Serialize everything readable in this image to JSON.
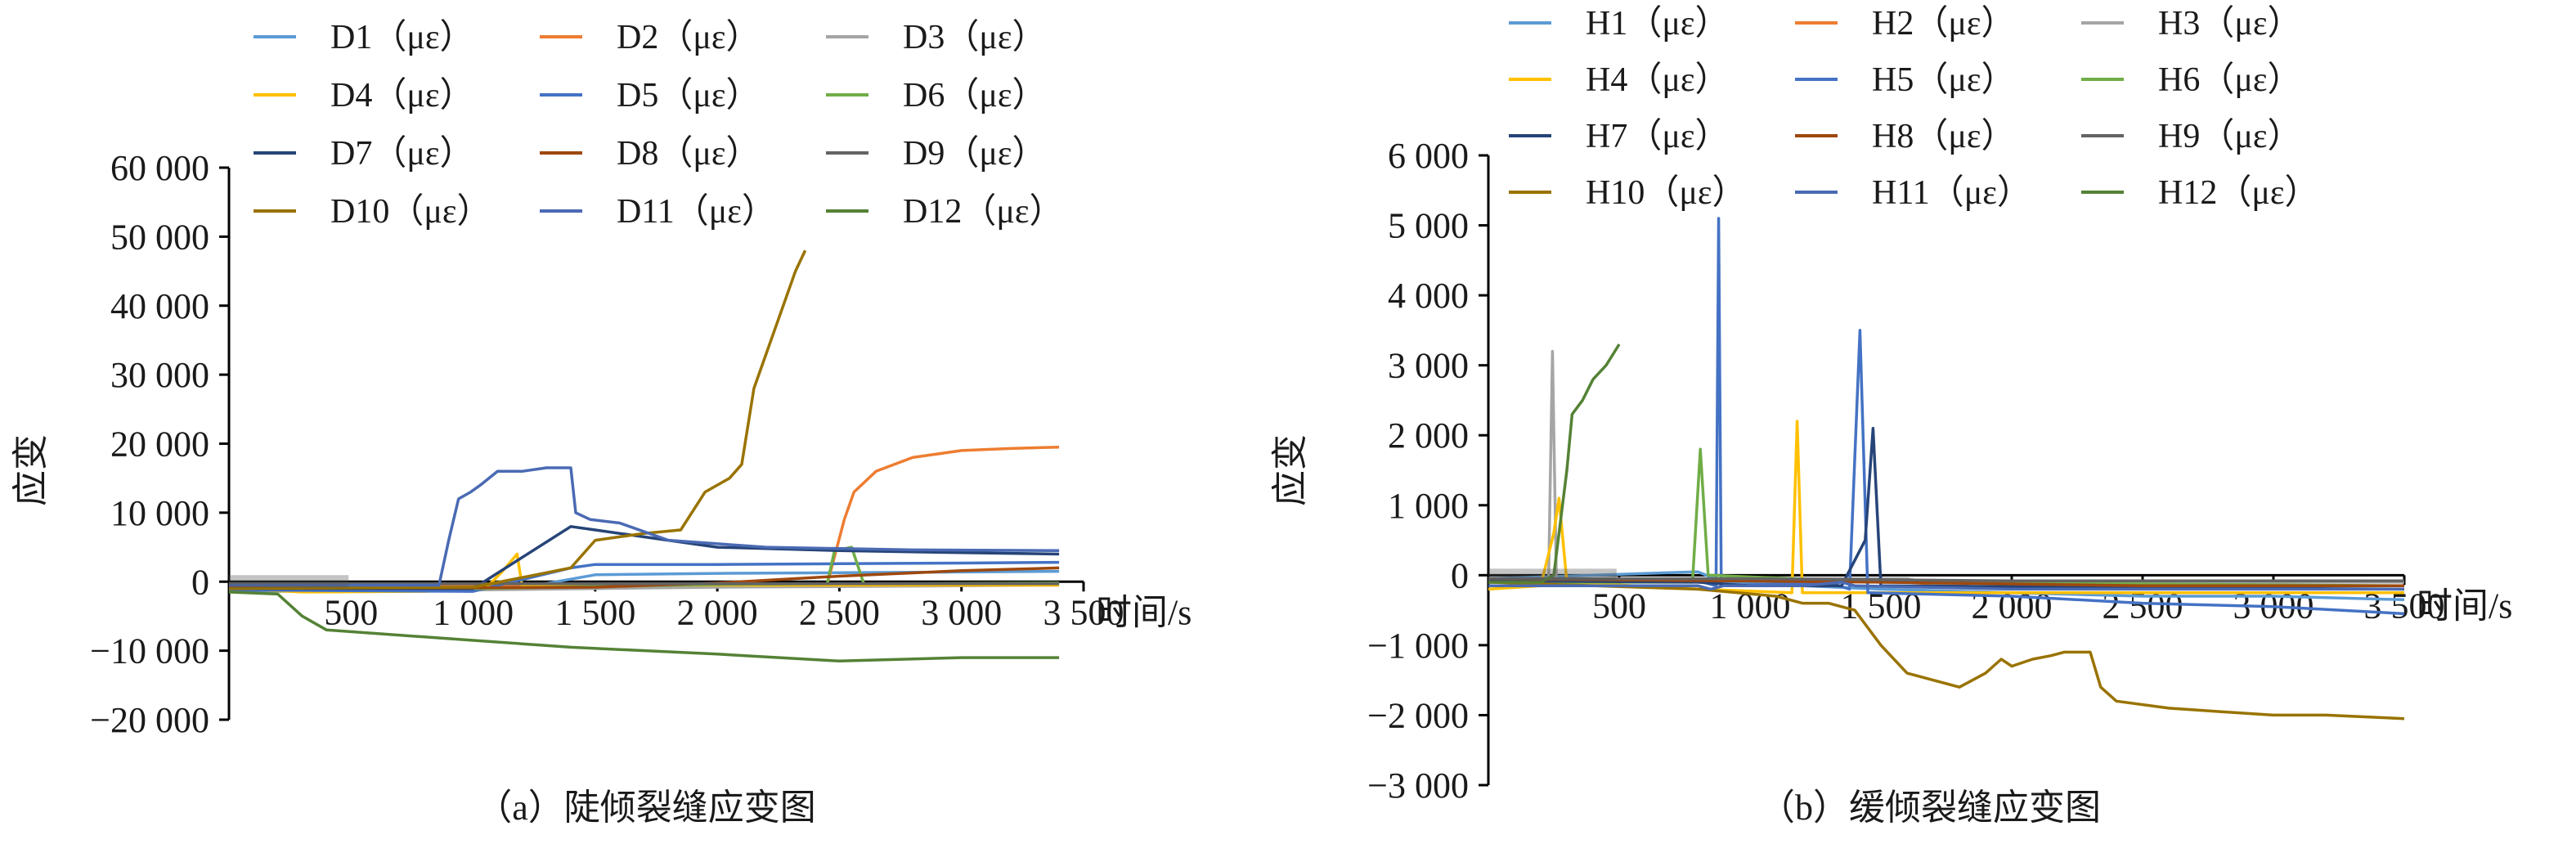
{
  "chart_data": [
    {
      "type": "line",
      "title": "",
      "caption": "（a）陡倾裂缝应变图",
      "xlabel": "时间/s",
      "ylabel": "应变",
      "xlim": [
        0,
        3500
      ],
      "ylim": [
        -20000,
        60000
      ],
      "x_ticks": [
        500,
        1000,
        1500,
        2000,
        2500,
        3000,
        3500
      ],
      "x_tick_labels": [
        "500",
        "1 000",
        "1 500",
        "2 000",
        "2 500",
        "3 000",
        "3 500"
      ],
      "y_ticks": [
        -20000,
        -10000,
        0,
        10000,
        20000,
        30000,
        40000,
        50000,
        60000
      ],
      "y_tick_labels": [
        "−20 000",
        "−10 000",
        "0",
        "10 000",
        "20 000",
        "30 000",
        "40 000",
        "50 000",
        "60 000"
      ],
      "grid": false,
      "legend_position": "top",
      "series": [
        {
          "name": "D1（με）",
          "color": "#5b9bd5",
          "points": [
            [
              0,
              -1500
            ],
            [
              600,
              -1200
            ],
            [
              1200,
              -900
            ],
            [
              1500,
              1000
            ],
            [
              2000,
              1200
            ],
            [
              2500,
              1300
            ],
            [
              3000,
              1400
            ],
            [
              3400,
              1500
            ]
          ]
        },
        {
          "name": "D2（με）",
          "color": "#ed7d31",
          "points": [
            [
              0,
              -500
            ],
            [
              1000,
              -600
            ],
            [
              2000,
              -600
            ],
            [
              2450,
              -400
            ],
            [
              2520,
              9000
            ],
            [
              2560,
              13000
            ],
            [
              2650,
              16000
            ],
            [
              2800,
              18000
            ],
            [
              3000,
              19000
            ],
            [
              3200,
              19300
            ],
            [
              3400,
              19500
            ]
          ]
        },
        {
          "name": "D3（με）",
          "color": "#a5a5a5",
          "points": [
            [
              0,
              -1000
            ],
            [
              1000,
              -1200
            ],
            [
              2000,
              -800
            ],
            [
              3000,
              -600
            ],
            [
              3400,
              -500
            ]
          ]
        },
        {
          "name": "D4（με）",
          "color": "#ffc000",
          "points": [
            [
              0,
              -1000
            ],
            [
              300,
              -1500
            ],
            [
              800,
              -1400
            ],
            [
              1050,
              -1000
            ],
            [
              1120,
              1500
            ],
            [
              1180,
              4000
            ],
            [
              1200,
              -500
            ],
            [
              3400,
              -500
            ]
          ]
        },
        {
          "name": "D5（με）",
          "color": "#4472c4",
          "points": [
            [
              0,
              -1200
            ],
            [
              1000,
              -1400
            ],
            [
              1400,
              2000
            ],
            [
              1500,
              2500
            ],
            [
              2000,
              2500
            ],
            [
              2500,
              2600
            ],
            [
              3000,
              2700
            ],
            [
              3400,
              2800
            ]
          ]
        },
        {
          "name": "D6（με）",
          "color": "#70ad47",
          "points": [
            [
              0,
              -900
            ],
            [
              1000,
              -1000
            ],
            [
              2000,
              -400
            ],
            [
              2450,
              -300
            ],
            [
              2480,
              4500
            ],
            [
              2550,
              5000
            ],
            [
              2600,
              -300
            ],
            [
              3400,
              -200
            ]
          ]
        },
        {
          "name": "D7（με）",
          "color": "#264478",
          "points": [
            [
              0,
              -1000
            ],
            [
              1000,
              -1000
            ],
            [
              1400,
              8000
            ],
            [
              1500,
              7500
            ],
            [
              2000,
              5000
            ],
            [
              2500,
              4500
            ],
            [
              3000,
              4200
            ],
            [
              3400,
              4000
            ]
          ]
        },
        {
          "name": "D8（με）",
          "color": "#9e480e",
          "points": [
            [
              0,
              -800
            ],
            [
              1000,
              -900
            ],
            [
              1500,
              -800
            ],
            [
              2000,
              -200
            ],
            [
              2500,
              800
            ],
            [
              3000,
              1600
            ],
            [
              3400,
              2000
            ]
          ]
        },
        {
          "name": "D9（με）",
          "color": "#636363",
          "points": [
            [
              0,
              -300
            ],
            [
              1000,
              -300
            ],
            [
              2000,
              -300
            ],
            [
              3000,
              -300
            ],
            [
              3400,
              -300
            ]
          ]
        },
        {
          "name": "D10（με）",
          "color": "#997300",
          "points": [
            [
              0,
              -1000
            ],
            [
              1000,
              -800
            ],
            [
              1400,
              2000
            ],
            [
              1500,
              6000
            ],
            [
              1700,
              7000
            ],
            [
              1850,
              7500
            ],
            [
              1950,
              13000
            ],
            [
              2050,
              15000
            ],
            [
              2100,
              17000
            ],
            [
              2150,
              28000
            ],
            [
              2250,
              38000
            ],
            [
              2320,
              45000
            ],
            [
              2360,
              48000
            ]
          ]
        },
        {
          "name": "D11（με）",
          "color": "#4a6ab3",
          "points": [
            [
              0,
              -500
            ],
            [
              860,
              -500
            ],
            [
              900,
              6000
            ],
            [
              940,
              12000
            ],
            [
              990,
              13000
            ],
            [
              1030,
              14000
            ],
            [
              1100,
              16000
            ],
            [
              1200,
              16000
            ],
            [
              1300,
              16500
            ],
            [
              1400,
              16500
            ],
            [
              1420,
              10000
            ],
            [
              1480,
              9000
            ],
            [
              1600,
              8500
            ],
            [
              1800,
              6000
            ],
            [
              2200,
              5000
            ],
            [
              2800,
              4600
            ],
            [
              3400,
              4500
            ]
          ]
        },
        {
          "name": "D12（με）",
          "color": "#548235",
          "points": [
            [
              0,
              -1500
            ],
            [
              200,
              -1800
            ],
            [
              300,
              -5000
            ],
            [
              400,
              -7000
            ],
            [
              800,
              -8000
            ],
            [
              1000,
              -8500
            ],
            [
              1400,
              -9500
            ],
            [
              2000,
              -10500
            ],
            [
              2500,
              -11500
            ],
            [
              3000,
              -11000
            ],
            [
              3400,
              -11000
            ]
          ]
        }
      ]
    },
    {
      "type": "line",
      "title": "",
      "caption": "（b）缓倾裂缝应变图",
      "xlabel": "时间/s",
      "ylabel": "应变",
      "xlim": [
        0,
        3500
      ],
      "ylim": [
        -3000,
        6000
      ],
      "x_ticks": [
        500,
        1000,
        1500,
        2000,
        2500,
        3000,
        3500
      ],
      "x_tick_labels": [
        "500",
        "1 000",
        "1 500",
        "2 000",
        "2 500",
        "3 000",
        "3 500"
      ],
      "y_ticks": [
        -3000,
        -2000,
        -1000,
        0,
        1000,
        2000,
        3000,
        4000,
        5000,
        6000
      ],
      "y_tick_labels": [
        "−3 000",
        "−2 000",
        "−1 000",
        "0",
        "1 000",
        "2 000",
        "3 000",
        "4 000",
        "5 000",
        "6 000"
      ],
      "grid": false,
      "legend_position": "top",
      "series": [
        {
          "name": "H1（με）",
          "color": "#5b9bd5",
          "points": [
            [
              0,
              -50
            ],
            [
              800,
              50
            ],
            [
              900,
              -100
            ],
            [
              1500,
              -200
            ],
            [
              2000,
              -250
            ],
            [
              2500,
              -300
            ],
            [
              3000,
              -300
            ],
            [
              3500,
              -350
            ]
          ]
        },
        {
          "name": "H2（με）",
          "color": "#ed7d31",
          "points": [
            [
              0,
              -80
            ],
            [
              1000,
              -80
            ],
            [
              1600,
              -100
            ],
            [
              1800,
              -150
            ],
            [
              2000,
              -200
            ],
            [
              2500,
              -150
            ],
            [
              3000,
              -150
            ],
            [
              3500,
              -150
            ]
          ]
        },
        {
          "name": "H3（με）",
          "color": "#a5a5a5",
          "points": [
            [
              0,
              -100
            ],
            [
              230,
              -100
            ],
            [
              245,
              3200
            ],
            [
              260,
              -100
            ],
            [
              1000,
              -50
            ],
            [
              1500,
              -50
            ],
            [
              1600,
              -50
            ],
            [
              1700,
              -120
            ],
            [
              2500,
              -100
            ],
            [
              3500,
              -100
            ]
          ]
        },
        {
          "name": "H4（με）",
          "color": "#ffc000",
          "points": [
            [
              0,
              -200
            ],
            [
              200,
              -150
            ],
            [
              250,
              600
            ],
            [
              270,
              1100
            ],
            [
              300,
              -100
            ],
            [
              800,
              -200
            ],
            [
              1160,
              -250
            ],
            [
              1180,
              2200
            ],
            [
              1200,
              -250
            ],
            [
              3500,
              -250
            ]
          ]
        },
        {
          "name": "H5（με）",
          "color": "#4472c4",
          "points": [
            [
              0,
              -100
            ],
            [
              800,
              -80
            ],
            [
              870,
              -150
            ],
            [
              880,
              5100
            ],
            [
              890,
              -150
            ],
            [
              1300,
              -100
            ],
            [
              1380,
              -200
            ],
            [
              1420,
              3500
            ],
            [
              1450,
              -250
            ],
            [
              2000,
              -300
            ],
            [
              2500,
              -400
            ],
            [
              3000,
              -450
            ],
            [
              3500,
              -550
            ]
          ]
        },
        {
          "name": "H6（με）",
          "color": "#70ad47",
          "points": [
            [
              0,
              -100
            ],
            [
              780,
              -100
            ],
            [
              810,
              1800
            ],
            [
              840,
              0
            ],
            [
              1500,
              -100
            ],
            [
              3500,
              -150
            ]
          ]
        },
        {
          "name": "H7（με）",
          "color": "#264478",
          "points": [
            [
              0,
              -80
            ],
            [
              800,
              -100
            ],
            [
              1000,
              -150
            ],
            [
              1350,
              -150
            ],
            [
              1440,
              500
            ],
            [
              1470,
              2100
            ],
            [
              1500,
              -150
            ],
            [
              3500,
              -200
            ]
          ]
        },
        {
          "name": "H8（με）",
          "color": "#9e480e",
          "points": [
            [
              0,
              -50
            ],
            [
              1500,
              -100
            ],
            [
              2500,
              -150
            ],
            [
              3500,
              -150
            ]
          ]
        },
        {
          "name": "H9（με）",
          "color": "#636363",
          "points": [
            [
              0,
              -50
            ],
            [
              1000,
              -50
            ],
            [
              2000,
              -80
            ],
            [
              3500,
              -80
            ]
          ]
        },
        {
          "name": "H10（με）",
          "color": "#997300",
          "points": [
            [
              0,
              -100
            ],
            [
              800,
              -200
            ],
            [
              1100,
              -300
            ],
            [
              1200,
              -400
            ],
            [
              1300,
              -400
            ],
            [
              1400,
              -500
            ],
            [
              1500,
              -1000
            ],
            [
              1600,
              -1400
            ],
            [
              1800,
              -1600
            ],
            [
              1900,
              -1400
            ],
            [
              1960,
              -1200
            ],
            [
              2000,
              -1300
            ],
            [
              2080,
              -1200
            ],
            [
              2150,
              -1150
            ],
            [
              2200,
              -1100
            ],
            [
              2300,
              -1100
            ],
            [
              2340,
              -1600
            ],
            [
              2400,
              -1800
            ],
            [
              2600,
              -1900
            ],
            [
              2800,
              -1950
            ],
            [
              3000,
              -2000
            ],
            [
              3200,
              -2000
            ],
            [
              3500,
              -2050
            ]
          ]
        },
        {
          "name": "H11（με）",
          "color": "#4a6ab3",
          "points": [
            [
              0,
              -150
            ],
            [
              800,
              -150
            ],
            [
              850,
              -200
            ],
            [
              900,
              -150
            ],
            [
              1200,
              -150
            ],
            [
              1350,
              -100
            ],
            [
              1400,
              -150
            ],
            [
              2000,
              -200
            ],
            [
              3500,
              -200
            ]
          ]
        },
        {
          "name": "H12（με）",
          "color": "#548235",
          "points": [
            [
              0,
              -100
            ],
            [
              200,
              -100
            ],
            [
              250,
              0
            ],
            [
              300,
              1500
            ],
            [
              320,
              2300
            ],
            [
              360,
              2500
            ],
            [
              400,
              2800
            ],
            [
              450,
              3000
            ],
            [
              500,
              3300
            ]
          ]
        }
      ]
    }
  ]
}
